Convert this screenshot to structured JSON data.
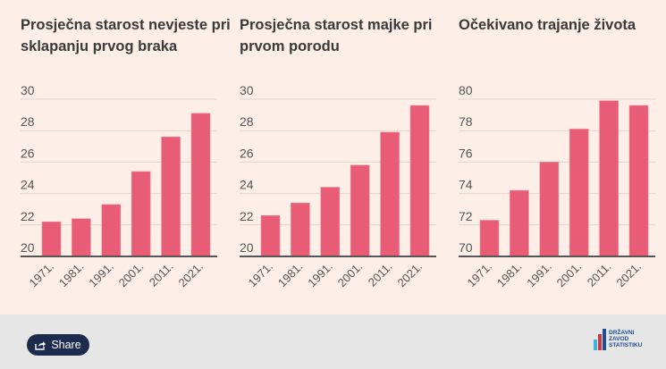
{
  "chart_data": [
    {
      "type": "bar",
      "title": "Prosječna starost nevjeste pri sklapanju prvog braka",
      "categories": [
        "1971.",
        "1981.",
        "1991.",
        "2001.",
        "2011.",
        "2021."
      ],
      "values": [
        22.2,
        22.4,
        23.3,
        25.4,
        27.6,
        29.1
      ],
      "ylim": [
        20,
        30
      ],
      "yticks": [
        20,
        22,
        24,
        26,
        28,
        30
      ],
      "grid": true
    },
    {
      "type": "bar",
      "title": "Prosječna starost majke pri prvom porodu",
      "categories": [
        "1971.",
        "1981.",
        "1991.",
        "2001.",
        "2011.",
        "2021."
      ],
      "values": [
        22.6,
        23.4,
        24.4,
        25.8,
        27.9,
        29.6
      ],
      "ylim": [
        20,
        30
      ],
      "yticks": [
        20,
        22,
        24,
        26,
        28,
        30
      ],
      "grid": true
    },
    {
      "type": "bar",
      "title": "Očekivano trajanje života",
      "categories": [
        "1971.",
        "1981.",
        "1991.",
        "2001.",
        "2011.",
        "2021."
      ],
      "values": [
        72.3,
        74.2,
        76.0,
        78.1,
        79.9,
        79.6
      ],
      "ylim": [
        70,
        80
      ],
      "yticks": [
        70,
        72,
        74,
        76,
        78,
        80
      ],
      "grid": true
    }
  ],
  "colors": {
    "bar": "#e85d75",
    "background": "#fdeee7",
    "grid": "#e6d3cc",
    "axis": "#555555",
    "footer": "#e6e6e6",
    "share_button": "#1d2b4c"
  },
  "footer": {
    "share_label": "Share",
    "share_icon": "share-icon",
    "logo_text": "DRŽAVNI ZAVOD ZA STATISTIKU"
  }
}
